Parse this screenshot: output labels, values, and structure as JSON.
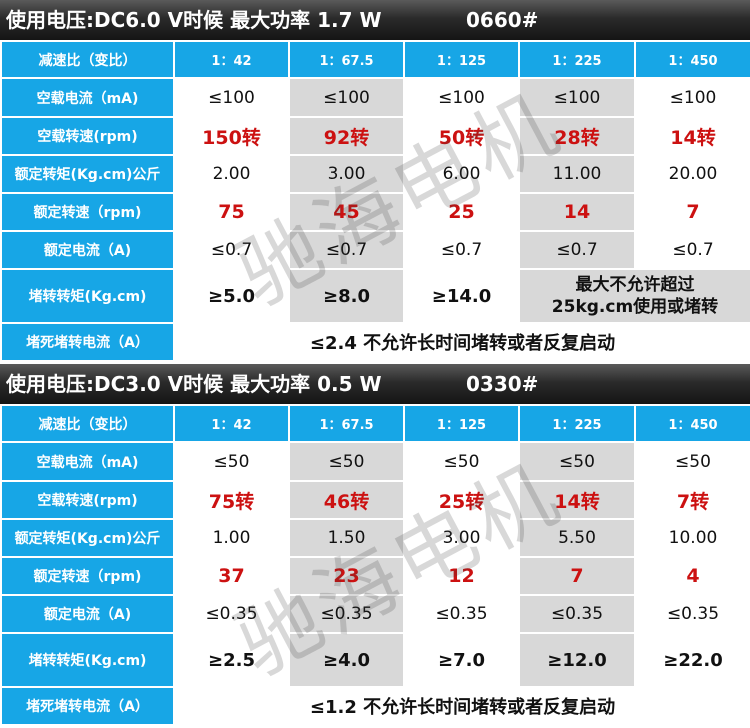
{
  "watermark": "驰海电机",
  "sections": [
    {
      "title": "使用电压:DC6.0 V时候 最大功率 1.7 W",
      "model": "0660#",
      "labels": {
        "ratio": "减速比（变比）",
        "noload_current": "空载电流（mA)",
        "noload_speed": "空载转速(rpm)",
        "rated_torque": "额定转矩(Kg.cm)公斤",
        "rated_speed": "额定转速（rpm)",
        "rated_current": "额定电流（A)",
        "stall_torque": "堵转转矩(Kg.cm)",
        "stall_current": "堵死堵转电流（A）"
      },
      "ratios": [
        "1：42",
        "1：67.5",
        "1：125",
        "1：225",
        "1：450"
      ],
      "noload_current": [
        "≤100",
        "≤100",
        "≤100",
        "≤100",
        "≤100"
      ],
      "noload_speed": [
        "150转",
        "92转",
        "50转",
        "28转",
        "14转"
      ],
      "rated_torque": [
        "2.00",
        "3.00",
        "6.00",
        "11.00",
        "20.00"
      ],
      "rated_speed": [
        "75",
        "45",
        "25",
        "14",
        "7"
      ],
      "rated_current": [
        "≤0.7",
        "≤0.7",
        "≤0.7",
        "≤0.7",
        "≤0.7"
      ],
      "stall_torque": [
        "≥5.0",
        "≥8.0",
        "≥14.0"
      ],
      "stall_note_line1": "最大不允许超过",
      "stall_note_line2": "25kg.cm使用或堵转",
      "stall_current_note": "≤2.4  不允许长时间堵转或者反复启动"
    },
    {
      "title": "使用电压:DC3.0 V时候 最大功率 0.5 W",
      "model": "0330#",
      "labels": {
        "ratio": "减速比（变比）",
        "noload_current": "空载电流（mA)",
        "noload_speed": "空载转速(rpm)",
        "rated_torque": "额定转矩(Kg.cm)公斤",
        "rated_speed": "额定转速（rpm)",
        "rated_current": "额定电流（A)",
        "stall_torque": "堵转转矩(Kg.cm)",
        "stall_current": "堵死堵转电流（A）"
      },
      "ratios": [
        "1：42",
        "1：67.5",
        "1：125",
        "1：225",
        "1：450"
      ],
      "noload_current": [
        "≤50",
        "≤50",
        "≤50",
        "≤50",
        "≤50"
      ],
      "noload_speed": [
        "75转",
        "46转",
        "25转",
        "14转",
        "7转"
      ],
      "rated_torque": [
        "1.00",
        "1.50",
        "3.00",
        "5.50",
        "10.00"
      ],
      "rated_speed": [
        "37",
        "23",
        "12",
        "7",
        "4"
      ],
      "rated_current": [
        "≤0.35",
        "≤0.35",
        "≤0.35",
        "≤0.35",
        "≤0.35"
      ],
      "stall_torque": [
        "≥2.5",
        "≥4.0",
        "≥7.0",
        "≥12.0",
        "≥22.0"
      ],
      "stall_current_note": "≤1.2  不允许长时间堵转或者反复启动"
    }
  ]
}
